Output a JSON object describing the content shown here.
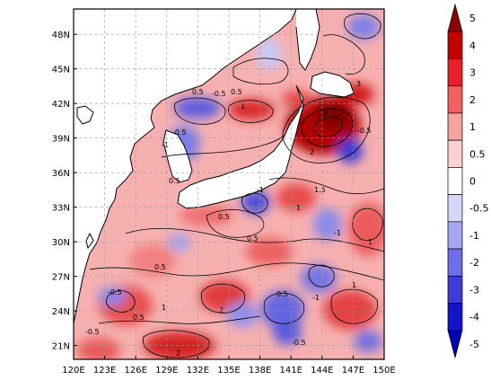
{
  "map": {
    "lon_ticks": [
      "120E",
      "123E",
      "126E",
      "129E",
      "132E",
      "135E",
      "138E",
      "141E",
      "144E",
      "147E",
      "150E"
    ],
    "lat_ticks": [
      "21N",
      "24N",
      "27N",
      "30N",
      "33N",
      "36N",
      "39N",
      "42N",
      "45N",
      "48N"
    ],
    "lon_range": [
      120,
      150
    ],
    "lat_range": [
      19.8,
      50.2
    ],
    "grid": true
  },
  "colorbar": {
    "levels": [
      "5",
      "4",
      "3",
      "2",
      "1",
      "0.5",
      "0",
      "-0.5",
      "-1",
      "-2",
      "-3",
      "-4",
      "-5"
    ],
    "colors": [
      "#8b0000",
      "#c40000",
      "#e8202a",
      "#f26161",
      "#f7a1a1",
      "#fbd2d2",
      "#ffffff",
      "#d6d6fa",
      "#a6a6f2",
      "#6e6ee6",
      "#3d3dd6",
      "#1414c8",
      "#0000b4"
    ]
  },
  "contour_labels": [
    {
      "text": "0.5"
    },
    {
      "text": "-0.5"
    },
    {
      "text": "1"
    },
    {
      "text": "-1"
    },
    {
      "text": "2"
    },
    {
      "text": "3"
    },
    {
      "text": "4"
    },
    {
      "text": "1.5"
    }
  ]
}
